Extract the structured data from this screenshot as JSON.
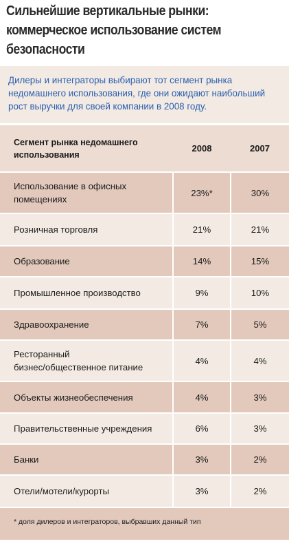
{
  "title_lines": [
    "Сильнейшие вертикальные рынки:",
    "коммерческое использование систем",
    "безопасности"
  ],
  "intro_lines": [
    "Дилеры и интеграторы выбирают тот сегмент рынка",
    "недомашнего использования, где они ожидают наибольший",
    "рост выручки для своей компании в 2008 году."
  ],
  "table": {
    "header": {
      "segment_lines": [
        "Сегмент рынка недомашнего",
        "использования"
      ],
      "col_2008": "2008",
      "col_2007": "2007"
    },
    "rows": [
      {
        "segment_lines": [
          "Использование в офисных",
          "помещениях"
        ],
        "v2008": "23%*",
        "v2007": "30%"
      },
      {
        "segment_lines": [
          "Розничная торговля"
        ],
        "v2008": "21%",
        "v2007": "21%"
      },
      {
        "segment_lines": [
          "Образование"
        ],
        "v2008": "14%",
        "v2007": "15%"
      },
      {
        "segment_lines": [
          "Промышленное производство"
        ],
        "v2008": "9%",
        "v2007": "10%"
      },
      {
        "segment_lines": [
          "Здравоохранение"
        ],
        "v2008": "7%",
        "v2007": "5%"
      },
      {
        "segment_lines": [
          "Ресторанный",
          "бизнес/общественное питание"
        ],
        "v2008": "4%",
        "v2007": "4%"
      },
      {
        "segment_lines": [
          "Объекты жизнеобеспечения"
        ],
        "v2008": "4%",
        "v2007": "3%"
      },
      {
        "segment_lines": [
          "Правительственные учреждения"
        ],
        "v2008": "6%",
        "v2007": "3%"
      },
      {
        "segment_lines": [
          "Банки"
        ],
        "v2008": "3%",
        "v2007": "2%"
      },
      {
        "segment_lines": [
          "Отели/мотели/курорты"
        ],
        "v2008": "3%",
        "v2007": "2%"
      }
    ]
  },
  "footnote": "* доля дилеров и интеграторов, выбравших данный тип"
}
